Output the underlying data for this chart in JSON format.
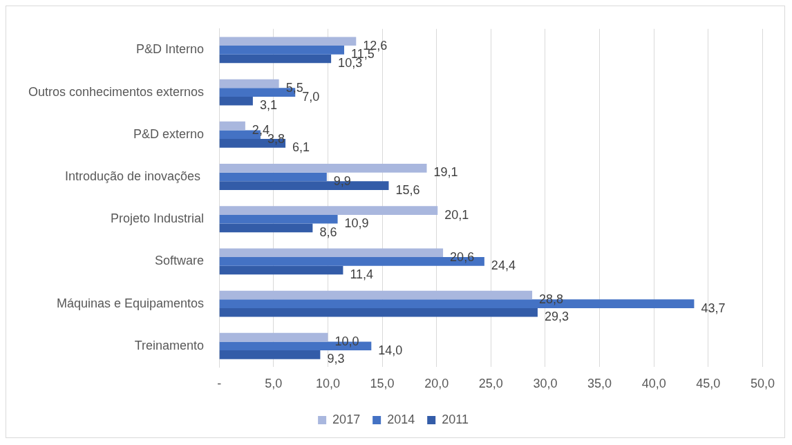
{
  "chart_data": {
    "type": "bar",
    "orientation": "horizontal",
    "categories": [
      "P&D Interno",
      "Outros conhecimentos externos",
      "P&D externo",
      "Introdução de inovações ",
      "Projeto Industrial",
      "Software",
      "Máquinas e Equipamentos",
      "Treinamento"
    ],
    "series": [
      {
        "name": "2017",
        "color": "#a9b7de",
        "values": [
          12.6,
          5.5,
          2.4,
          19.1,
          20.1,
          20.6,
          28.8,
          10.0
        ],
        "value_labels": [
          "12,6",
          "5,5",
          "2,4",
          "19,1",
          "20,1",
          "20,6",
          "28,8",
          "10,0"
        ]
      },
      {
        "name": "2014",
        "color": "#4472c4",
        "values": [
          11.5,
          7.0,
          3.8,
          9.9,
          10.9,
          24.4,
          43.7,
          14.0
        ],
        "value_labels": [
          "11,5",
          "7,0",
          "3,8",
          "9,9",
          "10,9",
          "24,4",
          "43,7",
          "14,0"
        ]
      },
      {
        "name": "2011",
        "color": "#335ca8",
        "values": [
          10.3,
          3.1,
          6.1,
          15.6,
          8.6,
          11.4,
          29.3,
          9.3
        ],
        "value_labels": [
          "10,3",
          "3,1",
          "6,1",
          "15,6",
          "8,6",
          "11,4",
          "29,3",
          "9,3"
        ]
      }
    ],
    "xlim": [
      0,
      50
    ],
    "xticks": [
      {
        "value": 0,
        "label": "-"
      },
      {
        "value": 5,
        "label": "5,0"
      },
      {
        "value": 10,
        "label": "10,0"
      },
      {
        "value": 15,
        "label": "15,0"
      },
      {
        "value": 20,
        "label": "20,0"
      },
      {
        "value": 25,
        "label": "25,0"
      },
      {
        "value": 30,
        "label": "30,0"
      },
      {
        "value": 35,
        "label": "35,0"
      },
      {
        "value": 40,
        "label": "40,0"
      },
      {
        "value": 45,
        "label": "45,0"
      },
      {
        "value": 50,
        "label": "50,0"
      }
    ],
    "grid": "x",
    "legend": "bottom"
  }
}
